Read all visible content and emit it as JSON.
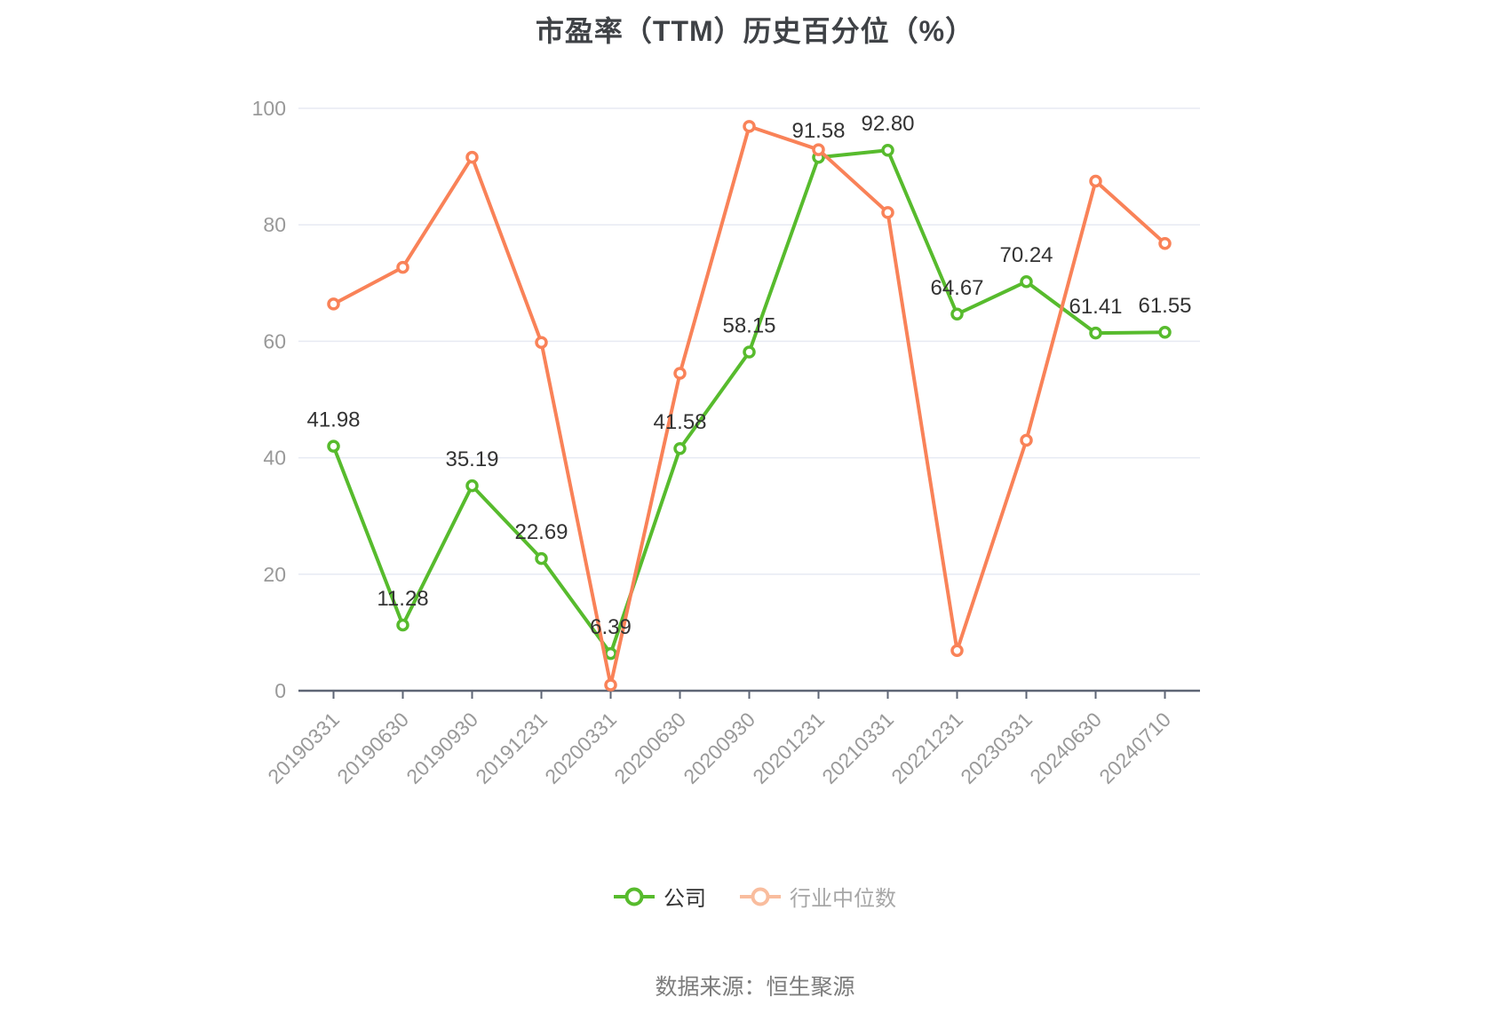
{
  "title": "市盈率（TTM）历史百分位（%）",
  "source_note": "数据来源：恒生聚源",
  "legend": {
    "items": [
      {
        "label": "公司",
        "marker_color": "#57bb2d",
        "text_color": "#333333"
      },
      {
        "label": "行业中位数",
        "marker_color": "#f9bd9e",
        "text_color": "#a7a7a7"
      }
    ]
  },
  "colors": {
    "company_line": "#57bb2d",
    "industry_line": "#f98258",
    "axis_line": "#5e6575",
    "grid_line": "#e7eaf3",
    "axis_label": "#999999",
    "data_label": "#333333"
  },
  "chart_data": {
    "type": "line",
    "title": "市盈率（TTM）历史百分位（%）",
    "categories": [
      "20190331",
      "20190630",
      "20190930",
      "20191231",
      "20200331",
      "20200630",
      "20200930",
      "20201231",
      "20210331",
      "20221231",
      "20230331",
      "20240630",
      "20240710"
    ],
    "series": [
      {
        "name": "公司",
        "color": "#57bb2d",
        "values": [
          41.98,
          11.28,
          35.19,
          22.69,
          6.39,
          41.58,
          58.15,
          91.58,
          92.8,
          64.67,
          70.24,
          61.41,
          61.55
        ],
        "labels": [
          "41.98",
          "11.28",
          "35.19",
          "22.69",
          "6.39",
          "41.58",
          "58.15",
          "91.58",
          "92.80",
          "64.67",
          "70.24",
          "61.41",
          "61.55"
        ],
        "show_labels": true
      },
      {
        "name": "行业中位数",
        "color": "#f98258",
        "values": [
          66.4,
          72.7,
          91.6,
          59.8,
          1.0,
          54.5,
          96.9,
          92.9,
          82.1,
          6.9,
          43.0,
          87.5,
          76.8
        ],
        "labels": [],
        "show_labels": false
      }
    ],
    "xlabel": "",
    "ylabel": "",
    "ylim": [
      0,
      100
    ],
    "yticks": [
      0,
      20,
      40,
      60,
      80,
      100
    ],
    "grid": true,
    "legend_position": "bottom",
    "x_label_rotation": 45
  }
}
